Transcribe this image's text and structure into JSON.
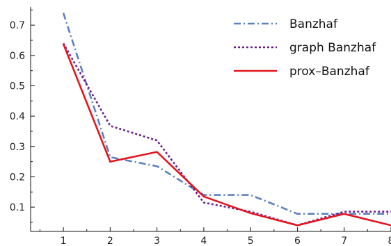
{
  "chart_data": {
    "type": "line",
    "title": "",
    "xlabel": "",
    "ylabel": "",
    "x": [
      1,
      2,
      3,
      4,
      5,
      6,
      7,
      8
    ],
    "xlim": [
      0.3,
      8
    ],
    "ylim": [
      0.02,
      0.76
    ],
    "xticks": [
      "1",
      "2",
      "3",
      "4",
      "5",
      "6",
      "7",
      "8"
    ],
    "yticks": [
      "0.1",
      "0.2",
      "0.3",
      "0.4",
      "0.5",
      "0.6",
      "0.7"
    ],
    "grid": false,
    "legend_position": "top-right",
    "series": [
      {
        "name": "Banzhaf",
        "values": [
          0.74,
          0.265,
          0.235,
          0.14,
          0.14,
          0.078,
          0.078,
          0.078
        ],
        "color": "#5b82be",
        "style": "dash-dot"
      },
      {
        "name": "graph Banzhaf",
        "values": [
          0.64,
          0.368,
          0.32,
          0.115,
          0.085,
          0.04,
          0.085,
          0.085
        ],
        "color": "#6a1f8f",
        "style": "dotted"
      },
      {
        "name": "prox–Banzhaf",
        "values": [
          0.638,
          0.25,
          0.282,
          0.135,
          0.08,
          0.04,
          0.078,
          0.04
        ],
        "color": "#e3151d",
        "style": "solid"
      }
    ]
  }
}
